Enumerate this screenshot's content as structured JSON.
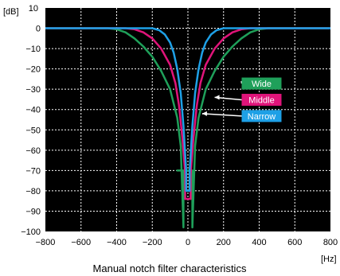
{
  "chart_data": {
    "type": "line",
    "title": "Manual notch filter characteristics",
    "xunit": "[Hz]",
    "yunit": "[dB]",
    "xlim": [
      -800,
      800
    ],
    "ylim": [
      -100,
      10
    ],
    "xticks": [
      -800,
      -600,
      -400,
      -200,
      0,
      200,
      400,
      600,
      800
    ],
    "xtick_labels": [
      "−800",
      "−600",
      "−400",
      "−200",
      "0",
      "200",
      "400",
      "600",
      "800"
    ],
    "yticks": [
      10,
      0,
      -10,
      -20,
      -30,
      -40,
      -50,
      -60,
      -70,
      -80,
      -90,
      -100
    ],
    "ytick_labels": [
      "10",
      "0",
      "−10",
      "−20",
      "−30",
      "−40",
      "−50",
      "−60",
      "−70",
      "−80",
      "−90",
      "−100"
    ],
    "grid": true,
    "background": "#000000",
    "series": [
      {
        "name": "Wide",
        "color": "#1fa05a",
        "label_at": [
          300,
          -26
        ],
        "x": [
          -800,
          -600,
          -500,
          -450,
          -400,
          -350,
          -300,
          -250,
          -200,
          -150,
          -100,
          -60,
          -40,
          -25,
          -25,
          -60,
          25,
          25,
          40,
          60,
          100,
          150,
          200,
          250,
          300,
          350,
          400,
          450,
          500,
          600,
          800
        ],
        "y": [
          0,
          0,
          0,
          0,
          -0.5,
          -2,
          -5,
          -9,
          -14,
          -21,
          -30,
          -44,
          -58,
          -98,
          -70,
          -70,
          -70,
          -98,
          -58,
          -44,
          -30,
          -21,
          -14,
          -9,
          -5,
          -2,
          -0.5,
          0,
          0,
          0,
          0
        ]
      },
      {
        "name": "Middle",
        "color": "#e0147a",
        "label_at": [
          150,
          -34
        ],
        "x": [
          -800,
          -500,
          -400,
          -350,
          -300,
          -250,
          -200,
          -150,
          -100,
          -70,
          -50,
          -30,
          -15,
          -15,
          15,
          15,
          30,
          50,
          70,
          100,
          150,
          200,
          250,
          300,
          350,
          400,
          500,
          800
        ],
        "y": [
          0,
          0,
          0,
          0,
          -0.5,
          -2,
          -5,
          -10,
          -18,
          -27,
          -38,
          -55,
          -72,
          -84,
          -84,
          -72,
          -55,
          -38,
          -27,
          -18,
          -10,
          -5,
          -2,
          -0.5,
          0,
          0,
          0,
          0
        ],
        "cut": [
          12,
          16
        ]
      },
      {
        "name": "Narrow",
        "color": "#1ea0e6",
        "label_at": [
          80,
          -42
        ],
        "x": [
          -800,
          -300,
          -200,
          -160,
          -130,
          -100,
          -80,
          -60,
          -40,
          -25,
          -10,
          -10,
          10,
          10,
          25,
          40,
          60,
          80,
          100,
          130,
          160,
          200,
          300,
          800
        ],
        "y": [
          0,
          0,
          0,
          -1,
          -3,
          -7,
          -12,
          -20,
          -32,
          -48,
          -70,
          -80,
          -80,
          -70,
          -48,
          -32,
          -20,
          -12,
          -7,
          -3,
          -1,
          0,
          0,
          0
        ]
      }
    ],
    "legend": [
      {
        "label": "Wide",
        "color": "#1fa05a",
        "at": [
          400,
          -27
        ]
      },
      {
        "label": "Middle",
        "color": "#e0147a",
        "at": [
          400,
          -35
        ]
      },
      {
        "label": "Narrow",
        "color": "#1ea0e6",
        "at": [
          400,
          -43
        ]
      }
    ]
  }
}
